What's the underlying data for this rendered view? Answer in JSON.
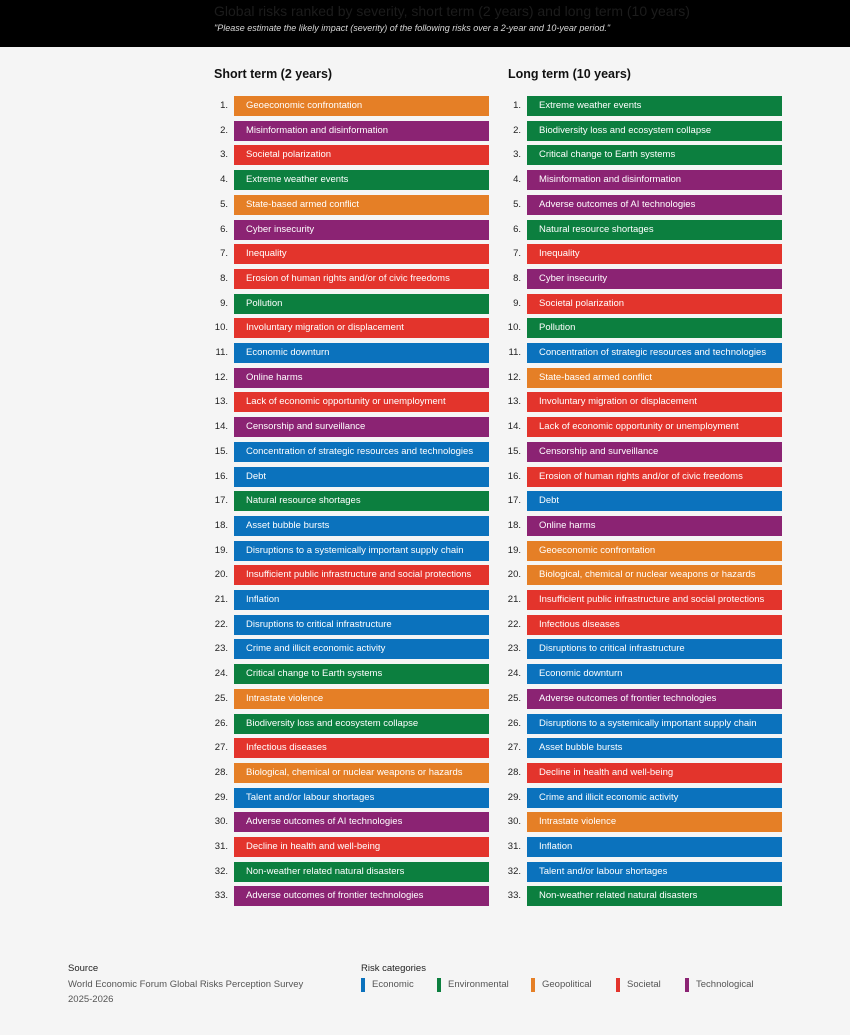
{
  "header": {
    "title": "Global risks ranked by severity, short term (2 years) and long term (10 years)",
    "subtitle": "\"Please estimate the likely impact (severity) of the following risks over a 2-year and 10-year period.\""
  },
  "colors": {
    "Economic": "#0b72bd",
    "Environmental": "#0c7f3f",
    "Geopolitical": "#e57f26",
    "Societal": "#e3342c",
    "Technological": "#8b2373"
  },
  "chart_data": {
    "type": "table",
    "columns": [
      {
        "title": "Short term (2 years)",
        "items": [
          {
            "rank": "1.",
            "label": "Geoeconomic confrontation",
            "category": "Geopolitical"
          },
          {
            "rank": "2.",
            "label": "Misinformation and disinformation",
            "category": "Technological"
          },
          {
            "rank": "3.",
            "label": "Societal polarization",
            "category": "Societal"
          },
          {
            "rank": "4.",
            "label": "Extreme weather events",
            "category": "Environmental"
          },
          {
            "rank": "5.",
            "label": "State-based armed conflict",
            "category": "Geopolitical"
          },
          {
            "rank": "6.",
            "label": "Cyber insecurity",
            "category": "Technological"
          },
          {
            "rank": "7.",
            "label": "Inequality",
            "category": "Societal"
          },
          {
            "rank": "8.",
            "label": "Erosion of human rights and/or of civic freedoms",
            "category": "Societal"
          },
          {
            "rank": "9.",
            "label": "Pollution",
            "category": "Environmental"
          },
          {
            "rank": "10.",
            "label": "Involuntary migration or displacement",
            "category": "Societal"
          },
          {
            "rank": "11.",
            "label": "Economic downturn",
            "category": "Economic"
          },
          {
            "rank": "12.",
            "label": "Online harms",
            "category": "Technological"
          },
          {
            "rank": "13.",
            "label": "Lack of economic opportunity or unemployment",
            "category": "Societal"
          },
          {
            "rank": "14.",
            "label": "Censorship and surveillance",
            "category": "Technological"
          },
          {
            "rank": "15.",
            "label": "Concentration of strategic resources and technologies",
            "category": "Economic"
          },
          {
            "rank": "16.",
            "label": "Debt",
            "category": "Economic"
          },
          {
            "rank": "17.",
            "label": "Natural resource shortages",
            "category": "Environmental"
          },
          {
            "rank": "18.",
            "label": "Asset bubble bursts",
            "category": "Economic"
          },
          {
            "rank": "19.",
            "label": "Disruptions to a systemically important supply chain",
            "category": "Economic"
          },
          {
            "rank": "20.",
            "label": "Insufficient public infrastructure and social protections",
            "category": "Societal"
          },
          {
            "rank": "21.",
            "label": "Inflation",
            "category": "Economic"
          },
          {
            "rank": "22.",
            "label": "Disruptions to critical infrastructure",
            "category": "Economic"
          },
          {
            "rank": "23.",
            "label": "Crime and illicit economic activity",
            "category": "Economic"
          },
          {
            "rank": "24.",
            "label": "Critical change to Earth systems",
            "category": "Environmental"
          },
          {
            "rank": "25.",
            "label": "Intrastate violence",
            "category": "Geopolitical"
          },
          {
            "rank": "26.",
            "label": "Biodiversity loss and ecosystem collapse",
            "category": "Environmental"
          },
          {
            "rank": "27.",
            "label": "Infectious diseases",
            "category": "Societal"
          },
          {
            "rank": "28.",
            "label": "Biological, chemical or nuclear weapons or hazards",
            "category": "Geopolitical"
          },
          {
            "rank": "29.",
            "label": "Talent and/or labour shortages",
            "category": "Economic"
          },
          {
            "rank": "30.",
            "label": "Adverse outcomes of AI technologies",
            "category": "Technological"
          },
          {
            "rank": "31.",
            "label": "Decline in health and well-being",
            "category": "Societal"
          },
          {
            "rank": "32.",
            "label": "Non-weather related natural disasters",
            "category": "Environmental"
          },
          {
            "rank": "33.",
            "label": "Adverse outcomes of frontier technologies",
            "category": "Technological"
          }
        ]
      },
      {
        "title": "Long term (10 years)",
        "items": [
          {
            "rank": "1.",
            "label": "Extreme weather events",
            "category": "Environmental"
          },
          {
            "rank": "2.",
            "label": "Biodiversity loss and ecosystem collapse",
            "category": "Environmental"
          },
          {
            "rank": "3.",
            "label": "Critical change to Earth systems",
            "category": "Environmental"
          },
          {
            "rank": "4.",
            "label": "Misinformation and disinformation",
            "category": "Technological"
          },
          {
            "rank": "5.",
            "label": "Adverse outcomes of AI technologies",
            "category": "Technological"
          },
          {
            "rank": "6.",
            "label": "Natural resource shortages",
            "category": "Environmental"
          },
          {
            "rank": "7.",
            "label": "Inequality",
            "category": "Societal"
          },
          {
            "rank": "8.",
            "label": "Cyber insecurity",
            "category": "Technological"
          },
          {
            "rank": "9.",
            "label": "Societal polarization",
            "category": "Societal"
          },
          {
            "rank": "10.",
            "label": "Pollution",
            "category": "Environmental"
          },
          {
            "rank": "11.",
            "label": "Concentration of strategic resources and technologies",
            "category": "Economic"
          },
          {
            "rank": "12.",
            "label": "State-based armed conflict",
            "category": "Geopolitical"
          },
          {
            "rank": "13.",
            "label": "Involuntary migration or displacement",
            "category": "Societal"
          },
          {
            "rank": "14.",
            "label": "Lack of economic opportunity or unemployment",
            "category": "Societal"
          },
          {
            "rank": "15.",
            "label": "Censorship and surveillance",
            "category": "Technological"
          },
          {
            "rank": "16.",
            "label": "Erosion of human rights and/or of civic freedoms",
            "category": "Societal"
          },
          {
            "rank": "17.",
            "label": "Debt",
            "category": "Economic"
          },
          {
            "rank": "18.",
            "label": "Online harms",
            "category": "Technological"
          },
          {
            "rank": "19.",
            "label": "Geoeconomic confrontation",
            "category": "Geopolitical"
          },
          {
            "rank": "20.",
            "label": "Biological, chemical or nuclear weapons or hazards",
            "category": "Geopolitical"
          },
          {
            "rank": "21.",
            "label": "Insufficient public infrastructure and social protections",
            "category": "Societal"
          },
          {
            "rank": "22.",
            "label": "Infectious diseases",
            "category": "Societal"
          },
          {
            "rank": "23.",
            "label": "Disruptions to critical infrastructure",
            "category": "Economic"
          },
          {
            "rank": "24.",
            "label": "Economic downturn",
            "category": "Economic"
          },
          {
            "rank": "25.",
            "label": "Adverse outcomes of frontier technologies",
            "category": "Technological"
          },
          {
            "rank": "26.",
            "label": "Disruptions to a systemically important supply chain",
            "category": "Economic"
          },
          {
            "rank": "27.",
            "label": "Asset bubble bursts",
            "category": "Economic"
          },
          {
            "rank": "28.",
            "label": "Decline in health and well-being",
            "category": "Societal"
          },
          {
            "rank": "29.",
            "label": "Crime and illicit economic activity",
            "category": "Economic"
          },
          {
            "rank": "30.",
            "label": "Intrastate violence",
            "category": "Geopolitical"
          },
          {
            "rank": "31.",
            "label": "Inflation",
            "category": "Economic"
          },
          {
            "rank": "32.",
            "label": "Talent and/or labour shortages",
            "category": "Economic"
          },
          {
            "rank": "33.",
            "label": "Non-weather related natural disasters",
            "category": "Environmental"
          }
        ]
      }
    ],
    "legend_title": "Risk categories",
    "legend": [
      "Economic",
      "Environmental",
      "Geopolitical",
      "Societal",
      "Technological"
    ]
  },
  "footer": {
    "source_label": "Source",
    "source_line1": "World Economic Forum Global Risks Perception Survey",
    "source_line2": "2025-2026"
  }
}
